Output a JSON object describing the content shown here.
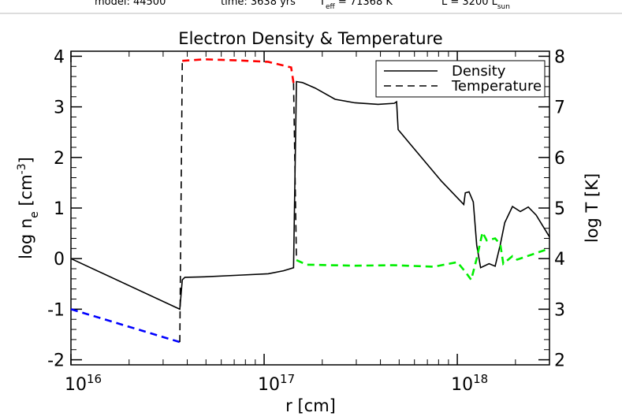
{
  "header": [
    {
      "text": "model: 44500"
    },
    {
      "text": "time: 3638 yrs"
    },
    {
      "text": "T",
      "sub": "eff",
      "after": " = 71368 K"
    },
    {
      "text": "L = 3200 L",
      "sub": "sun"
    }
  ],
  "chart_data": {
    "type": "line",
    "title": "Electron Density & Temperature",
    "xlabel": "r [cm]",
    "ylabel": {
      "text": "log n",
      "sub": "e",
      "unit": " [cm",
      "sup": "-3",
      "end": "]"
    },
    "y2label": "log T [K]",
    "xscale": "log",
    "xlim": [
      1e+16,
      3e+18
    ],
    "xticks": [
      {
        "value": 1e+16,
        "label": "10",
        "sup": "16"
      },
      {
        "value": 1e+17,
        "label": "10",
        "sup": "17"
      },
      {
        "value": 1e+18,
        "label": "10",
        "sup": "18"
      }
    ],
    "ylim": [
      -2.1,
      4.1
    ],
    "yticks": [
      -2,
      -1,
      0,
      1,
      2,
      3,
      4
    ],
    "y2lim": [
      1.9,
      8.1
    ],
    "y2ticks": [
      2,
      3,
      4,
      5,
      6,
      7,
      8
    ],
    "minor_ticks": true,
    "legend": "upper right",
    "series": [
      {
        "name": "Density",
        "color": "#000000",
        "style": "solid",
        "x": [
          1e+16,
          3.66e+16,
          3.77e+16,
          3.89e+16,
          4.9e+16,
          7.19e+16,
          1.05e+17,
          1.26e+17,
          1.42e+17,
          1.47e+17,
          1.58e+17,
          1.84e+17,
          2.33e+17,
          2.95e+17,
          3.89e+17,
          4.71e+17,
          4.85e+17,
          4.94e+17,
          5.69e+17,
          8.28e+17,
          1.08e+18,
          1.1e+18,
          1.15e+18,
          1.21e+18,
          1.26e+18,
          1.32e+18,
          1.46e+18,
          1.57e+18,
          1.67e+18,
          1.76e+18,
          1.93e+18,
          2.12e+18,
          2.33e+18,
          2.56e+18,
          3e+18
        ],
        "values": [
          0,
          -1.0,
          -0.42,
          -0.37,
          -0.36,
          -0.33,
          -0.3,
          -0.24,
          -0.18,
          3.5,
          3.48,
          3.37,
          3.15,
          3.08,
          3.05,
          3.07,
          3.1,
          2.55,
          2.27,
          1.53,
          1.07,
          1.3,
          1.32,
          1.12,
          0.27,
          -0.18,
          -0.1,
          -0.15,
          0.28,
          0.71,
          1.03,
          0.93,
          1.02,
          0.86,
          0.43
        ]
      },
      {
        "name": "Temperature",
        "color": "#000000",
        "style": "dashed",
        "axis": "y2",
        "x": [
          1e+16,
          3.66e+16,
          3.77e+16,
          4.9e+16,
          7.19e+16,
          1.05e+17,
          1.38e+17,
          1.42e+17,
          1.47e+17,
          1.66e+17,
          2.95e+17,
          4.68e+17,
          7.55e+17,
          1e+18,
          1.1e+18,
          1.18e+18,
          1.26e+18,
          1.35e+18,
          1.42e+18,
          1.57e+18,
          1.67e+18,
          1.73e+18,
          1.93e+18,
          2.04e+18,
          3e+18
        ],
        "values": [
          3.0,
          2.35,
          7.91,
          7.94,
          7.92,
          7.89,
          7.78,
          7.47,
          3.97,
          3.88,
          3.86,
          3.87,
          3.84,
          3.93,
          3.74,
          3.58,
          4.0,
          4.52,
          4.36,
          4.4,
          4.28,
          3.9,
          4.05,
          3.98,
          4.2
        ],
        "segment_colors": [
          "#0000ff",
          "#000000",
          "#ff0000",
          "#ff0000",
          "#ff0000",
          "#ff0000",
          "#ff0000",
          "#000000",
          "#00ee00",
          "#00ee00",
          "#00ee00",
          "#00ee00",
          "#00ee00",
          "#00ee00",
          "#00ee00",
          "#00ee00",
          "#00ee00",
          "#00ee00",
          "#00ee00",
          "#00ee00",
          "#00ee00",
          "#00ee00",
          "#00ee00",
          "#00ee00",
          "#00ee00"
        ]
      }
    ]
  }
}
